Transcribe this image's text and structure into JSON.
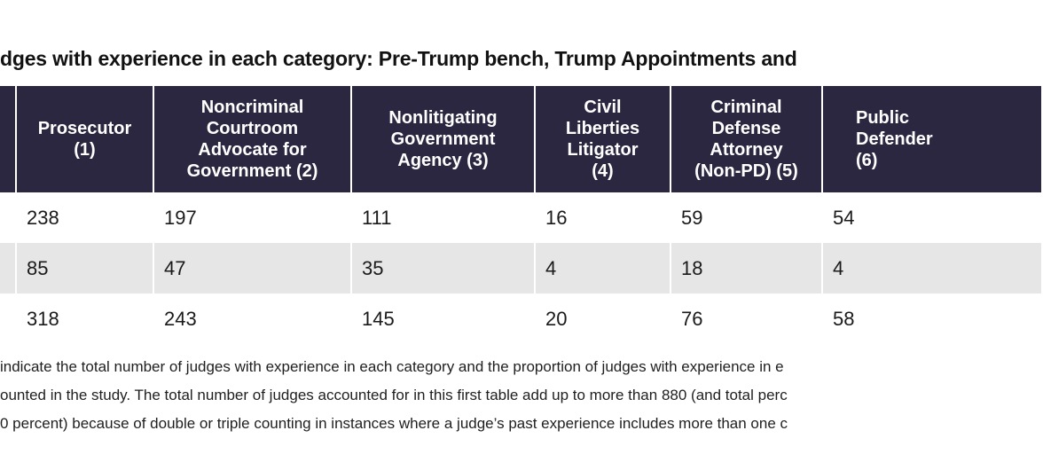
{
  "title": "dges with experience in each category: Pre-Trump bench, Trump Appointments and",
  "table": {
    "headers": [
      "",
      "Prosecutor\n(1)",
      "Noncriminal\nCourtroom\nAdvocate for\nGovernment (2)",
      "Nonlitigating\nGovernment\nAgency (3)",
      "Civil\nLiberties\nLitigator\n(4)",
      "Criminal\nDefense\nAttorney\n(Non-PD) (5)",
      "Public\nDefender\n(6)"
    ],
    "rows": [
      [
        "",
        "238",
        "197",
        "111",
        "16",
        "59",
        "54"
      ],
      [
        "",
        "85",
        "47",
        "35",
        "4",
        "18",
        "4"
      ],
      [
        "",
        "318",
        "243",
        "145",
        "20",
        "76",
        "58"
      ]
    ]
  },
  "notes": [
    " indicate the total number of judges with experience in each category and the proportion of judges with experience in e",
    "ounted in the study. The total number of judges accounted for in this first table add up to more than 880 (and total perc",
    "0 percent) because of double or triple counting in instances where a judge’s past experience includes more than one c"
  ],
  "colors": {
    "header_bg": "#2c2740",
    "header_text": "#ffffff",
    "shaded_row": "#e6e6e6"
  }
}
